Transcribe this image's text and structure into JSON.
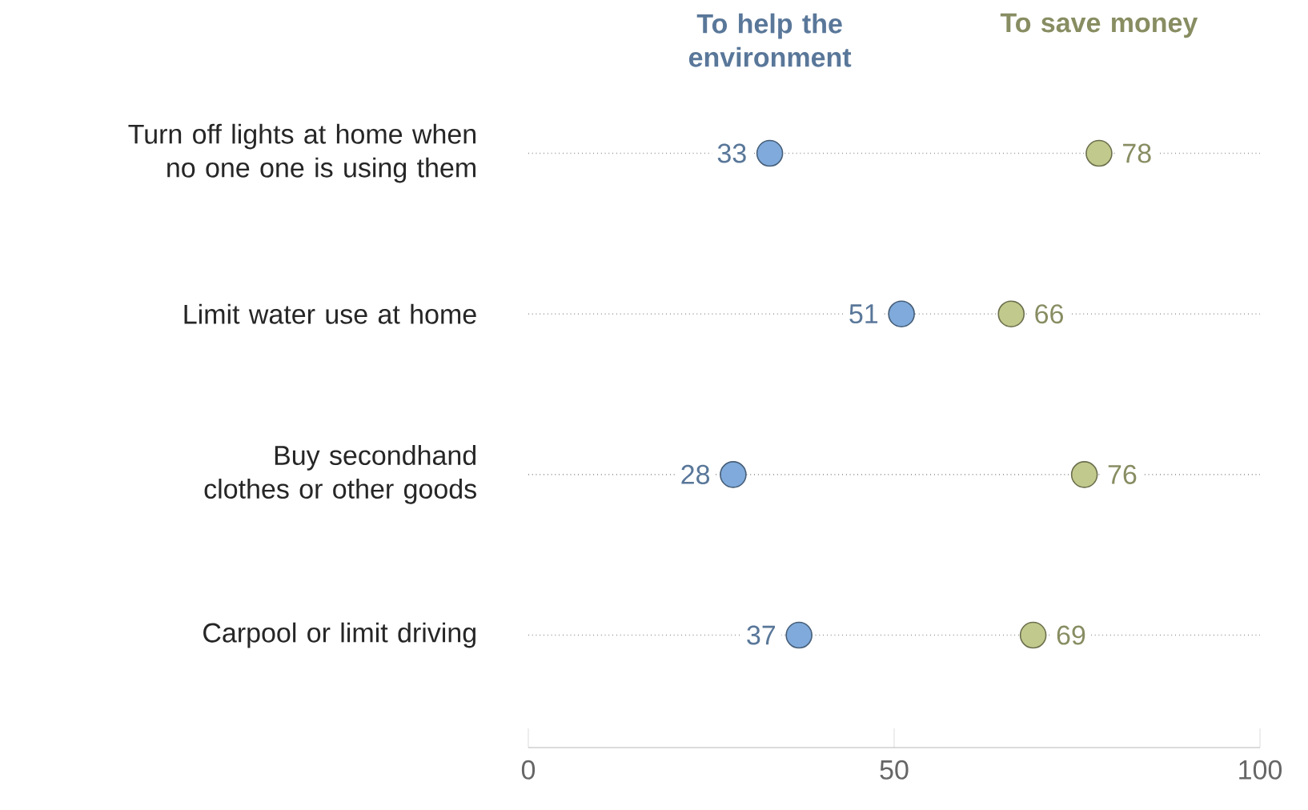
{
  "chart_data": {
    "type": "scatter",
    "orientation": "horizontal",
    "categories": [
      "Turn off lights at home when no one one is using them",
      "Limit water use at home",
      "Buy secondhand clothes or other goods",
      "Carpool or limit driving"
    ],
    "series": [
      {
        "name": "To help the environment",
        "color": "#7faadb",
        "values": [
          33,
          51,
          28,
          37
        ]
      },
      {
        "name": "To save money",
        "color": "#c2c98c",
        "values": [
          78,
          66,
          76,
          69
        ]
      }
    ],
    "xlim": [
      0,
      100
    ],
    "xticks": [
      0,
      50,
      100
    ],
    "grid": "y",
    "legend": "top",
    "marker": "circle",
    "data_labels": true
  }
}
